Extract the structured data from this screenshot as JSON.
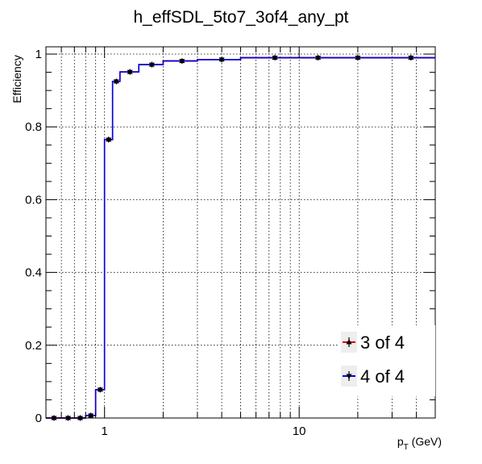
{
  "chart_data": {
    "type": "line",
    "title": "h_effSDL_5to7_3of4_any_pt",
    "xlabel_main": "p",
    "xlabel_sub": "T",
    "xlabel_unit": " (GeV)",
    "ylabel": "Efficiency",
    "x_scale": "log",
    "xlim": [
      0.5,
      50
    ],
    "ylim": [
      0,
      1.02
    ],
    "x_ticks": [
      1,
      10
    ],
    "y_ticks": [
      0,
      0.2,
      0.4,
      0.6,
      0.8,
      1
    ],
    "grid": true,
    "legend_position": "bottom-right",
    "bins": [
      {
        "lo": 0.5,
        "hi": 0.6,
        "x": 0.55
      },
      {
        "lo": 0.6,
        "hi": 0.7,
        "x": 0.65
      },
      {
        "lo": 0.7,
        "hi": 0.8,
        "x": 0.75
      },
      {
        "lo": 0.8,
        "hi": 0.9,
        "x": 0.85
      },
      {
        "lo": 0.9,
        "hi": 1.0,
        "x": 0.95
      },
      {
        "lo": 1.0,
        "hi": 1.1,
        "x": 1.05
      },
      {
        "lo": 1.1,
        "hi": 1.2,
        "x": 1.15
      },
      {
        "lo": 1.2,
        "hi": 1.5,
        "x": 1.35
      },
      {
        "lo": 1.5,
        "hi": 2.0,
        "x": 1.75
      },
      {
        "lo": 2.0,
        "hi": 3.0,
        "x": 2.5
      },
      {
        "lo": 3.0,
        "hi": 5.0,
        "x": 4.0
      },
      {
        "lo": 5.0,
        "hi": 10.0,
        "x": 7.5
      },
      {
        "lo": 10.0,
        "hi": 15.0,
        "x": 12.5
      },
      {
        "lo": 15.0,
        "hi": 25.0,
        "x": 20.0
      },
      {
        "lo": 25.0,
        "hi": 50.0,
        "x": 37.5
      }
    ],
    "series": [
      {
        "name": "3 of 4",
        "color": "#e8000b",
        "marker": "triangle-up",
        "values": [
          0.0,
          0.0,
          0.0,
          0.007,
          0.078,
          0.765,
          0.925,
          0.951,
          0.971,
          0.981,
          0.985,
          0.99,
          0.99,
          0.99,
          0.99
        ],
        "errors": [
          0.003,
          0.002,
          0.002,
          0.003,
          0.004,
          0.007,
          0.004,
          0.003,
          0.003,
          0.003,
          0.003,
          0.003,
          0.004,
          0.005,
          0.006
        ]
      },
      {
        "name": "4 of 4",
        "color": "#0000dd",
        "marker": "triangle-down",
        "values": [
          0.0,
          0.0,
          0.0,
          0.007,
          0.078,
          0.765,
          0.925,
          0.951,
          0.971,
          0.981,
          0.985,
          0.99,
          0.99,
          0.99,
          0.99
        ],
        "errors": [
          0.003,
          0.002,
          0.002,
          0.003,
          0.004,
          0.007,
          0.004,
          0.003,
          0.003,
          0.003,
          0.003,
          0.003,
          0.004,
          0.005,
          0.006
        ]
      }
    ]
  }
}
